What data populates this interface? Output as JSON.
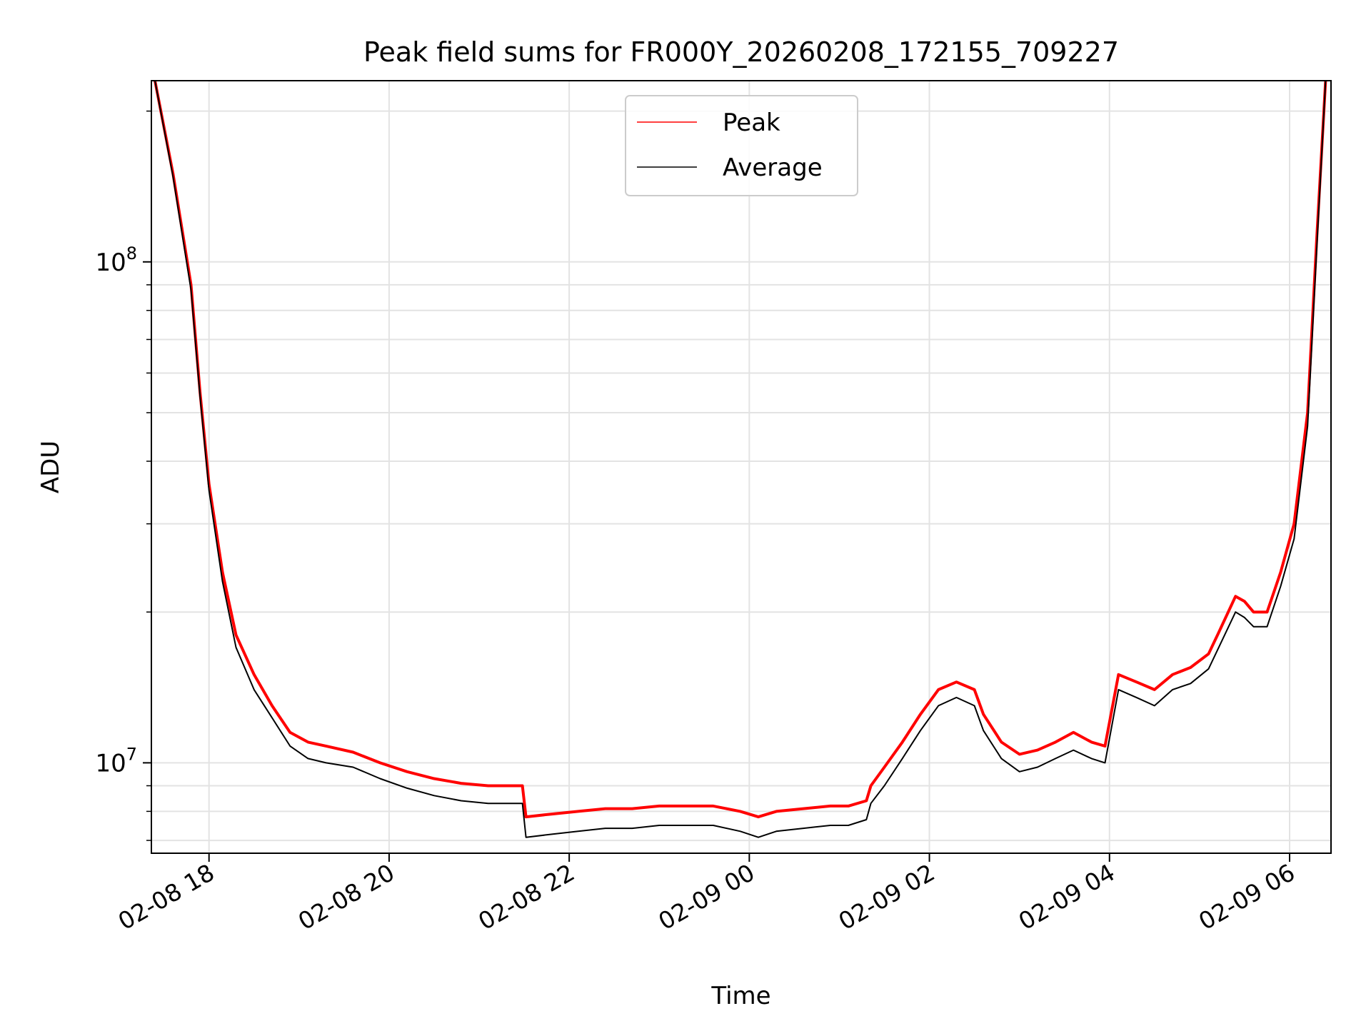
{
  "chart_data": {
    "type": "line",
    "title": "Peak field sums for FR000Y_20260208_172155_709227",
    "xlabel": "Time",
    "ylabel": "ADU",
    "yscale": "log",
    "grid": true,
    "legend_position": "top-center",
    "xlim_hours": [
      17.36,
      30.46
    ],
    "ylim": [
      6600000,
      230000000
    ],
    "x_ticks": [
      {
        "hours": 18,
        "label": "02-08 18"
      },
      {
        "hours": 20,
        "label": "02-08 20"
      },
      {
        "hours": 22,
        "label": "02-08 22"
      },
      {
        "hours": 24,
        "label": "02-09 00"
      },
      {
        "hours": 26,
        "label": "02-09 02"
      },
      {
        "hours": 28,
        "label": "02-09 04"
      },
      {
        "hours": 30,
        "label": "02-09 06"
      }
    ],
    "y_major_ticks": [
      {
        "value": 10000000,
        "base": "10",
        "exp": "7"
      },
      {
        "value": 100000000,
        "base": "10",
        "exp": "8"
      }
    ],
    "y_minor_ticks": [
      7000000,
      8000000,
      9000000,
      20000000,
      30000000,
      40000000,
      50000000,
      60000000,
      70000000,
      80000000,
      90000000,
      200000000
    ],
    "series": [
      {
        "name": "Peak",
        "color": "#ff0000",
        "x_hours": [
          17.4,
          17.6,
          17.8,
          17.9,
          18.0,
          18.15,
          18.3,
          18.5,
          18.7,
          18.9,
          19.1,
          19.3,
          19.6,
          19.9,
          20.2,
          20.5,
          20.8,
          21.1,
          21.3,
          21.48,
          21.52,
          21.8,
          22.1,
          22.4,
          22.7,
          23.0,
          23.3,
          23.6,
          23.9,
          24.1,
          24.3,
          24.6,
          24.9,
          25.1,
          25.3,
          25.35,
          25.5,
          25.7,
          25.9,
          26.1,
          26.3,
          26.5,
          26.6,
          26.8,
          27.0,
          27.2,
          27.4,
          27.6,
          27.8,
          27.95,
          28.1,
          28.3,
          28.5,
          28.7,
          28.9,
          29.1,
          29.2,
          29.4,
          29.5,
          29.6,
          29.75,
          29.9,
          30.05,
          30.2,
          30.3,
          30.4
        ],
        "values": [
          230000000,
          150000000,
          90000000,
          55000000,
          36000000,
          24000000,
          18000000,
          15000000,
          13000000,
          11500000,
          11000000,
          10800000,
          10500000,
          10000000,
          9600000,
          9300000,
          9100000,
          9000000,
          9000000,
          9000000,
          7800000,
          7900000,
          8000000,
          8100000,
          8100000,
          8200000,
          8200000,
          8200000,
          8000000,
          7800000,
          8000000,
          8100000,
          8200000,
          8200000,
          8400000,
          9000000,
          9800000,
          11000000,
          12500000,
          14000000,
          14500000,
          14000000,
          12500000,
          11000000,
          10400000,
          10600000,
          11000000,
          11500000,
          11000000,
          10800000,
          15000000,
          14500000,
          14000000,
          15000000,
          15500000,
          16500000,
          18000000,
          21500000,
          21000000,
          20000000,
          20000000,
          24000000,
          30000000,
          50000000,
          110000000,
          230000000
        ]
      },
      {
        "name": "Average",
        "color": "#000000",
        "x_hours": [
          17.4,
          17.6,
          17.8,
          17.9,
          18.0,
          18.15,
          18.3,
          18.5,
          18.7,
          18.9,
          19.1,
          19.3,
          19.6,
          19.9,
          20.2,
          20.5,
          20.8,
          21.1,
          21.3,
          21.48,
          21.52,
          21.8,
          22.1,
          22.4,
          22.7,
          23.0,
          23.3,
          23.6,
          23.9,
          24.1,
          24.3,
          24.6,
          24.9,
          25.1,
          25.3,
          25.35,
          25.5,
          25.7,
          25.9,
          26.1,
          26.3,
          26.5,
          26.6,
          26.8,
          27.0,
          27.2,
          27.4,
          27.6,
          27.8,
          27.95,
          28.1,
          28.3,
          28.5,
          28.7,
          28.9,
          29.1,
          29.2,
          29.4,
          29.5,
          29.6,
          29.75,
          29.9,
          30.05,
          30.2,
          30.3,
          30.4
        ],
        "values": [
          230000000,
          148000000,
          88000000,
          54000000,
          35000000,
          23000000,
          17000000,
          14000000,
          12300000,
          10800000,
          10200000,
          10000000,
          9800000,
          9300000,
          8900000,
          8600000,
          8400000,
          8300000,
          8300000,
          8300000,
          7100000,
          7200000,
          7300000,
          7400000,
          7400000,
          7500000,
          7500000,
          7500000,
          7300000,
          7100000,
          7300000,
          7400000,
          7500000,
          7500000,
          7700000,
          8300000,
          9000000,
          10200000,
          11600000,
          13000000,
          13500000,
          13000000,
          11600000,
          10200000,
          9600000,
          9800000,
          10200000,
          10600000,
          10200000,
          10000000,
          14000000,
          13500000,
          13000000,
          14000000,
          14400000,
          15400000,
          16800000,
          20000000,
          19500000,
          18700000,
          18700000,
          22500000,
          28000000,
          47000000,
          105000000,
          230000000
        ]
      }
    ]
  }
}
